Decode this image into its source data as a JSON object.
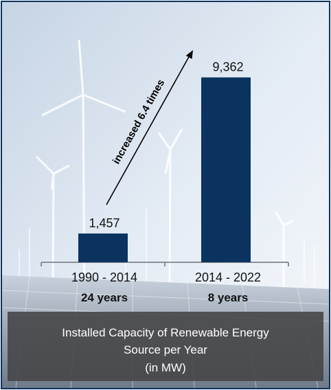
{
  "chart_data": {
    "type": "bar",
    "categories": [
      "1990 - 2014",
      "2014  - 2022"
    ],
    "durations": [
      "24 years",
      "8 years"
    ],
    "values": [
      1457,
      9362
    ],
    "value_labels": [
      "1,457",
      "9,362"
    ],
    "annotation": "increased 6.4 times",
    "title_lines": [
      "Installed Capacity of Renewable Energy",
      "Source per Year",
      "(in MW)"
    ],
    "ylim": [
      0,
      10500
    ],
    "grid": false,
    "colors": {
      "bar": "#0b3360",
      "axis": "#8a9098",
      "text": "#111111",
      "frame": "#0b3360",
      "caption_bg": "#48484a"
    }
  }
}
